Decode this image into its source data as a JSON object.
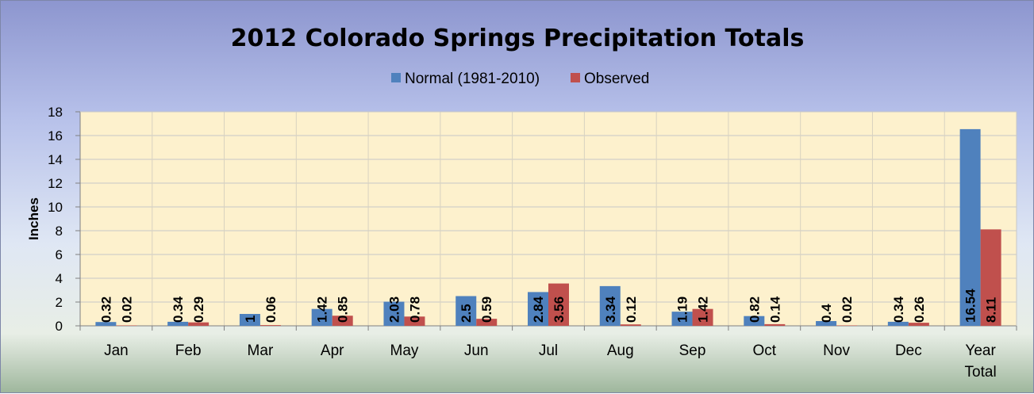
{
  "chart_data": {
    "type": "bar",
    "title": "2012 Colorado Springs Precipitation Totals",
    "ylabel": "Inches",
    "xlabel": "",
    "ylim": [
      0,
      18
    ],
    "yticks": [
      0,
      2,
      4,
      6,
      8,
      10,
      12,
      14,
      16,
      18
    ],
    "grid": true,
    "legend_position": "top-center",
    "categories": [
      "Jan",
      "Feb",
      "Mar",
      "Apr",
      "May",
      "Jun",
      "Jul",
      "Aug",
      "Sep",
      "Oct",
      "Nov",
      "Dec",
      "Year Total"
    ],
    "series": [
      {
        "name": "Normal (1981-2010)",
        "color": "#4f81bd",
        "values": [
          0.32,
          0.34,
          1,
          1.42,
          2.03,
          2.5,
          2.84,
          3.34,
          1.19,
          0.82,
          0.4,
          0.34,
          16.54
        ]
      },
      {
        "name": "Observed",
        "color": "#c0504d",
        "values": [
          0.02,
          0.29,
          0.06,
          0.85,
          0.78,
          0.59,
          3.56,
          0.12,
          1.42,
          0.14,
          0.02,
          0.26,
          8.11
        ]
      }
    ],
    "plot_background": "#fdf1cd",
    "gridline_color": "#c8c8c8"
  }
}
